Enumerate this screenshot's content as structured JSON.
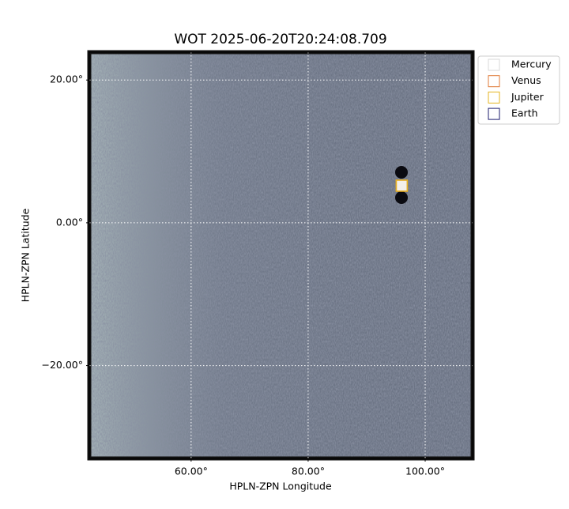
{
  "chart_data": {
    "type": "image",
    "title": "WOT 2025-06-20T20:24:08.709",
    "xlabel": "HPLN-ZPN Longitude",
    "ylabel": "HPLN-ZPN Latitude",
    "xlim": [
      42.6,
      108.1
    ],
    "ylim": [
      -33.0,
      23.9
    ],
    "xticks": [
      {
        "value": 60,
        "label": "60.00°"
      },
      {
        "value": 80,
        "label": "80.00°"
      },
      {
        "value": 100,
        "label": "100.00°"
      }
    ],
    "yticks": [
      {
        "value": -20,
        "label": "−20.00°"
      },
      {
        "value": 0,
        "label": "0.00°"
      },
      {
        "value": 20,
        "label": "20.00°"
      }
    ],
    "grid": true,
    "legend": "upper right",
    "series": [
      {
        "name": "Mercury",
        "color": "#d9d9d9",
        "x": null,
        "y": null
      },
      {
        "name": "Venus",
        "color": "#e07b39",
        "x": 96.0,
        "y": 5.2
      },
      {
        "name": "Jupiter",
        "color": "#e6b422",
        "x": 96.0,
        "y": 5.2
      },
      {
        "name": "Earth",
        "color": "#1c1c6e",
        "x": null,
        "y": null
      }
    ]
  }
}
